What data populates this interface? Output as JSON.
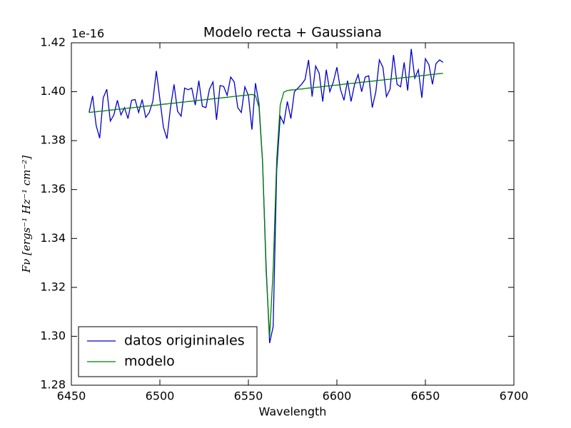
{
  "chart_data": {
    "type": "line",
    "title": "Modelo recta + Gaussiana",
    "x_label": "Wavelength",
    "y_label": "Fν [ergs⁻¹ Hz⁻¹ cm⁻²]",
    "y_offset_label": "1e-16",
    "x": [
      6460,
      6462,
      6464,
      6466,
      6468,
      6470,
      6472,
      6474,
      6476,
      6478,
      6480,
      6482,
      6484,
      6486,
      6488,
      6490,
      6492,
      6494,
      6496,
      6498,
      6500,
      6502,
      6504,
      6506,
      6508,
      6510,
      6512,
      6514,
      6516,
      6518,
      6520,
      6522,
      6524,
      6526,
      6528,
      6530,
      6532,
      6534,
      6536,
      6538,
      6540,
      6542,
      6544,
      6546,
      6548,
      6550,
      6552,
      6554,
      6556,
      6558,
      6560,
      6562,
      6564,
      6566,
      6568,
      6570,
      6572,
      6574,
      6576,
      6578,
      6580,
      6582,
      6584,
      6586,
      6588,
      6590,
      6592,
      6594,
      6596,
      6598,
      6600,
      6602,
      6604,
      6606,
      6608,
      6610,
      6612,
      6614,
      6616,
      6618,
      6620,
      6622,
      6624,
      6626,
      6628,
      6630,
      6632,
      6634,
      6636,
      6638,
      6640,
      6642,
      6644,
      6646,
      6648,
      6650,
      6652,
      6654,
      6656,
      6658,
      6660
    ],
    "series": [
      {
        "name": "datos origininales",
        "color": "#0000cc",
        "values": [
          1.3915,
          1.3983,
          1.3862,
          1.381,
          1.3975,
          1.401,
          1.388,
          1.3905,
          1.3965,
          1.3905,
          1.3935,
          1.389,
          1.3965,
          1.3968,
          1.3915,
          1.3968,
          1.3895,
          1.3915,
          1.396,
          1.4085,
          1.397,
          1.3855,
          1.3808,
          1.3935,
          1.403,
          1.392,
          1.39,
          1.4015,
          1.4008,
          1.4015,
          1.3945,
          1.4045,
          1.394,
          1.3935,
          1.401,
          1.404,
          1.3885,
          1.4025,
          1.4022,
          1.3985,
          1.406,
          1.404,
          1.3935,
          1.3915,
          1.402,
          1.3985,
          1.3845,
          1.4035,
          1.395,
          1.3715,
          1.329,
          1.2972,
          1.304,
          1.368,
          1.39,
          1.387,
          1.396,
          1.389,
          1.4,
          1.4015,
          1.403,
          1.405,
          1.413,
          1.398,
          1.4105,
          1.4075,
          1.396,
          1.409,
          1.4,
          1.404,
          1.41,
          1.401,
          1.3965,
          1.4045,
          1.396,
          1.403,
          1.407,
          1.4,
          1.406,
          1.4065,
          1.3935,
          1.4,
          1.413,
          1.41,
          1.398,
          1.401,
          1.415,
          1.403,
          1.402,
          1.412,
          1.4005,
          1.4175,
          1.4055,
          1.409,
          1.3975,
          1.4135,
          1.411,
          1.403,
          1.4115,
          1.413,
          1.412
        ]
      },
      {
        "name": "modelo",
        "color": "#007f00",
        "values": [
          1.3915,
          1.3917,
          1.3918,
          1.392,
          1.3921,
          1.3923,
          1.3925,
          1.3926,
          1.3928,
          1.3929,
          1.3931,
          1.3933,
          1.3934,
          1.3936,
          1.3937,
          1.3939,
          1.3941,
          1.3942,
          1.3944,
          1.3945,
          1.3947,
          1.3949,
          1.395,
          1.3952,
          1.3953,
          1.3955,
          1.3957,
          1.3958,
          1.396,
          1.3961,
          1.3963,
          1.3965,
          1.3966,
          1.3968,
          1.3969,
          1.3971,
          1.3973,
          1.3974,
          1.3976,
          1.3977,
          1.3979,
          1.3981,
          1.3982,
          1.3984,
          1.3985,
          1.3987,
          1.3989,
          1.3984,
          1.3936,
          1.3716,
          1.327,
          1.2998,
          1.3273,
          1.3723,
          1.3946,
          1.3998,
          1.4005,
          1.4007,
          1.4008,
          1.401,
          1.4011,
          1.4013,
          1.4015,
          1.4016,
          1.4018,
          1.4019,
          1.4021,
          1.4023,
          1.4024,
          1.4026,
          1.4027,
          1.4029,
          1.4031,
          1.4032,
          1.4034,
          1.4035,
          1.4037,
          1.4039,
          1.404,
          1.4042,
          1.4043,
          1.4045,
          1.4047,
          1.4048,
          1.405,
          1.4051,
          1.4053,
          1.4055,
          1.4056,
          1.4058,
          1.4059,
          1.4061,
          1.4063,
          1.4064,
          1.4066,
          1.4067,
          1.4069,
          1.4071,
          1.4072,
          1.4074,
          1.4075
        ]
      }
    ],
    "xlim": [
      6450,
      6700
    ],
    "xticks": [
      6450,
      6500,
      6550,
      6600,
      6650,
      6700
    ],
    "ylim": [
      1.28,
      1.42
    ],
    "yticks": [
      1.28,
      {
        "value": 1.3,
        "label": "1.30"
      },
      1.32,
      1.34,
      1.36,
      1.38,
      {
        "value": 1.4,
        "label": "1.40"
      },
      1.42
    ],
    "grid": false,
    "legend": "lower left"
  }
}
